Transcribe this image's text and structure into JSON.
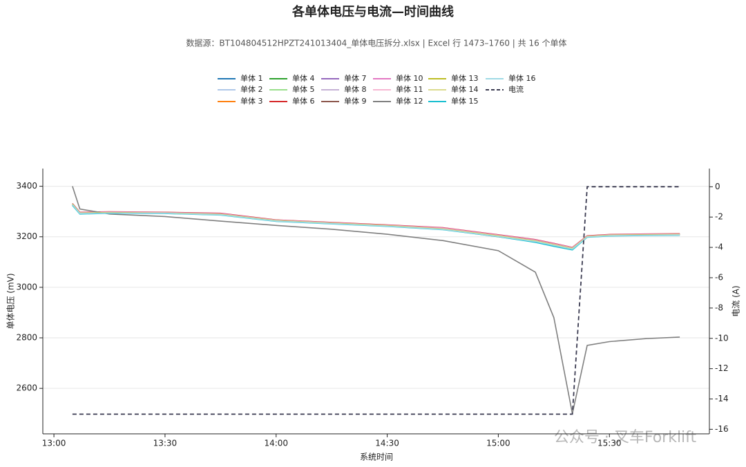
{
  "chart_data": {
    "type": "line",
    "title": "各单体电压与电流—时间曲线",
    "subtitle": "数据源：BT104804512HPZT241013404_单体电压拆分.xlsx | Excel 行 1473–1760 | 共 16 个单体",
    "xlabel": "系统时间",
    "ylabel": "单体电压 (mV)",
    "y2label": "电流 (A)",
    "watermark": "公众号 · 叉车Forklift",
    "x": [
      "13:05",
      "13:07",
      "13:15",
      "13:30",
      "13:45",
      "14:00",
      "14:15",
      "14:30",
      "14:45",
      "15:00",
      "15:10",
      "15:15",
      "15:20",
      "15:24",
      "15:30",
      "15:40",
      "15:49"
    ],
    "xlim": [
      "12:57",
      "15:57"
    ],
    "xticks": [
      "13:00",
      "13:30",
      "14:00",
      "14:30",
      "15:00",
      "15:30"
    ],
    "ylim": [
      2420,
      3470
    ],
    "yticks": [
      2600,
      2800,
      3000,
      3200,
      3400
    ],
    "y2lim": [
      -16.3,
      1.2
    ],
    "y2ticks": [
      0,
      -2,
      -4,
      -6,
      -8,
      -10,
      -12,
      -14,
      -16
    ],
    "grid": true,
    "series": [
      {
        "name": "单体 1",
        "color": "#1f77b4",
        "values": [
          3330,
          3295,
          3297,
          3295,
          3290,
          3265,
          3255,
          3245,
          3232,
          3205,
          3185,
          3170,
          3155,
          3202,
          3207,
          3209,
          3210
        ]
      },
      {
        "name": "单体 2",
        "color": "#aec7e8",
        "values": [
          3328,
          3293,
          3296,
          3294,
          3288,
          3263,
          3254,
          3244,
          3230,
          3203,
          3183,
          3168,
          3153,
          3200,
          3205,
          3207,
          3208
        ]
      },
      {
        "name": "单体 3",
        "color": "#ff7f0e",
        "values": [
          3325,
          3292,
          3295,
          3293,
          3287,
          3262,
          3252,
          3242,
          3229,
          3200,
          3180,
          3165,
          3150,
          3199,
          3204,
          3206,
          3207
        ]
      },
      {
        "name": "单体 4",
        "color": "#2ca02c",
        "values": [
          3331,
          3296,
          3298,
          3296,
          3291,
          3266,
          3256,
          3246,
          3234,
          3206,
          3186,
          3171,
          3156,
          3203,
          3208,
          3210,
          3211
        ]
      },
      {
        "name": "单体 5",
        "color": "#98df8a",
        "values": [
          3329,
          3294,
          3296,
          3294,
          3289,
          3264,
          3254,
          3244,
          3231,
          3204,
          3184,
          3169,
          3154,
          3201,
          3206,
          3208,
          3209
        ]
      },
      {
        "name": "单体 6",
        "color": "#d62728",
        "values": [
          3332,
          3297,
          3299,
          3297,
          3293,
          3267,
          3257,
          3247,
          3236,
          3208,
          3189,
          3174,
          3158,
          3204,
          3209,
          3211,
          3212
        ]
      },
      {
        "name": "单体 7",
        "color": "#9467bd",
        "values": [
          3330,
          3295,
          3297,
          3295,
          3290,
          3265,
          3255,
          3245,
          3233,
          3205,
          3186,
          3170,
          3155,
          3202,
          3207,
          3209,
          3210
        ]
      },
      {
        "name": "单体 8",
        "color": "#c5b0d5",
        "values": [
          3327,
          3294,
          3296,
          3294,
          3289,
          3264,
          3254,
          3244,
          3231,
          3204,
          3184,
          3169,
          3154,
          3201,
          3206,
          3208,
          3209
        ]
      },
      {
        "name": "单体 9",
        "color": "#8c564b",
        "values": [
          3326,
          3293,
          3295,
          3293,
          3288,
          3263,
          3253,
          3243,
          3230,
          3202,
          3182,
          3167,
          3152,
          3200,
          3205,
          3207,
          3208
        ]
      },
      {
        "name": "单体 10",
        "color": "#e377c2",
        "values": [
          3331,
          3296,
          3298,
          3296,
          3292,
          3266,
          3256,
          3246,
          3235,
          3207,
          3188,
          3173,
          3157,
          3203,
          3208,
          3210,
          3211
        ]
      },
      {
        "name": "单体 11",
        "color": "#f7b6d2",
        "values": [
          3329,
          3295,
          3297,
          3295,
          3290,
          3265,
          3255,
          3245,
          3233,
          3205,
          3185,
          3170,
          3155,
          3202,
          3207,
          3209,
          3210
        ]
      },
      {
        "name": "单体 12",
        "color": "#7f7f7f",
        "values": [
          3400,
          3310,
          3290,
          3280,
          3262,
          3245,
          3230,
          3210,
          3185,
          3145,
          3060,
          2880,
          2500,
          2770,
          2785,
          2797,
          2803
        ]
      },
      {
        "name": "单体 13",
        "color": "#bcbd22",
        "values": [
          3330,
          3294,
          3296,
          3294,
          3289,
          3264,
          3254,
          3244,
          3231,
          3204,
          3184,
          3169,
          3154,
          3201,
          3206,
          3208,
          3209
        ]
      },
      {
        "name": "单体 14",
        "color": "#dbdb8d",
        "values": [
          3328,
          3293,
          3295,
          3293,
          3288,
          3263,
          3253,
          3243,
          3230,
          3203,
          3183,
          3168,
          3153,
          3200,
          3205,
          3207,
          3208
        ]
      },
      {
        "name": "单体 15",
        "color": "#17becf",
        "values": [
          3324,
          3290,
          3293,
          3292,
          3286,
          3261,
          3251,
          3241,
          3228,
          3200,
          3178,
          3162,
          3148,
          3198,
          3203,
          3205,
          3206
        ]
      },
      {
        "name": "单体 16",
        "color": "#9edae5",
        "values": [
          3327,
          3292,
          3294,
          3293,
          3287,
          3262,
          3252,
          3242,
          3229,
          3201,
          3181,
          3166,
          3151,
          3199,
          3204,
          3206,
          3207
        ]
      },
      {
        "name": "电流",
        "color": "#3a3a50",
        "axis": "y2",
        "style": "dashed",
        "values": [
          -15,
          -15,
          -15,
          -15,
          -15,
          -15,
          -15,
          -15,
          -15,
          -15,
          -15,
          -15,
          -15,
          0,
          0,
          0,
          0
        ]
      }
    ]
  }
}
